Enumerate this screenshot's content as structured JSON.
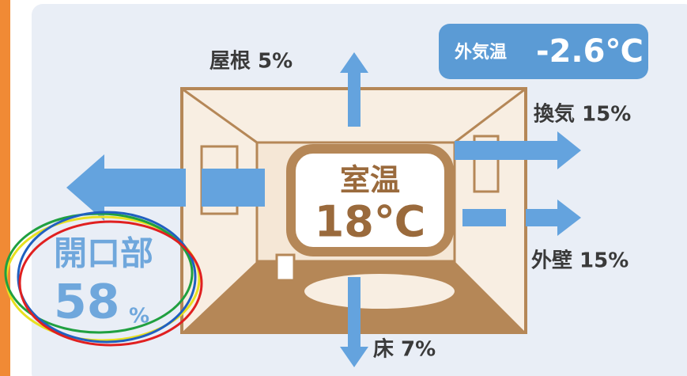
{
  "labels": {
    "roof": "屋根 5%",
    "ventilation": "換気 15%",
    "wall": "外壁 15%",
    "floor": "床 7%",
    "opening_name": "開口部",
    "opening_value": "58",
    "opening_unit": "%"
  },
  "outside": {
    "label": "外気温",
    "value": "-2.6℃"
  },
  "room": {
    "label": "室温",
    "value": "18℃"
  }
}
